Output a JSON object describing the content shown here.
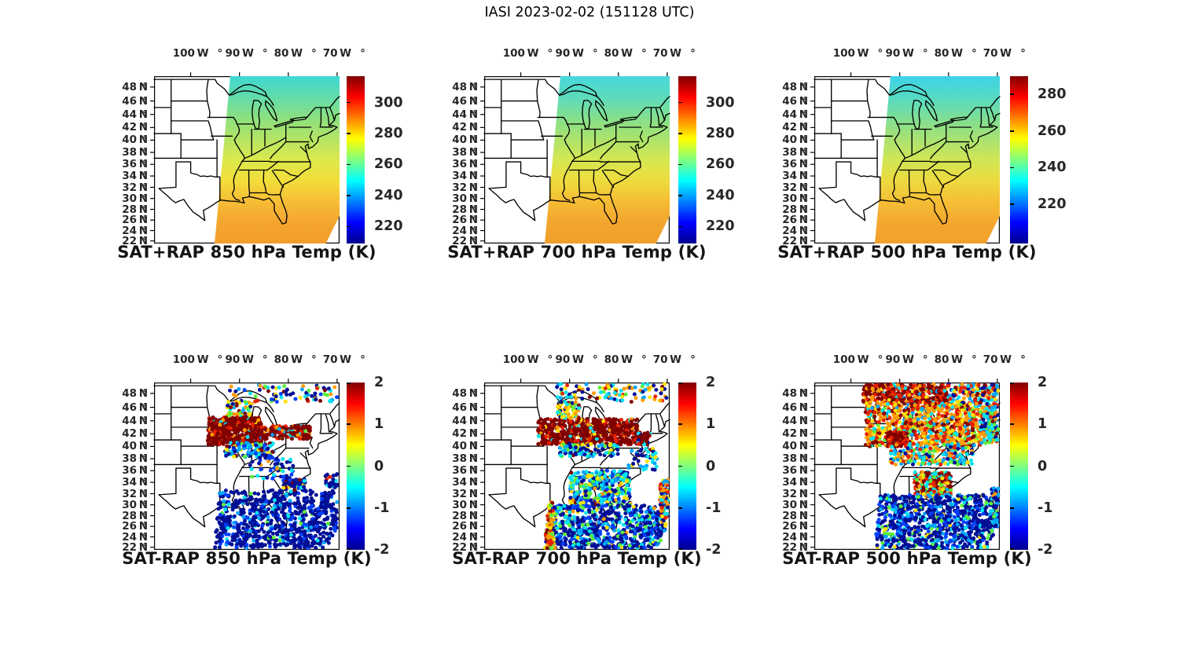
{
  "figure": {
    "title": "IASI 2023-02-02 (151128 UTC)",
    "background": "#ffffff",
    "text_color": "#141414",
    "tick_label_color": "#262626"
  },
  "axes": {
    "projection": "mercator",
    "lon_range_deg_w": [
      107.5,
      69.5
    ],
    "lat_range_deg_n": [
      21.5,
      49.5
    ],
    "x_tick_labels": [
      "100° W",
      "90° W",
      "80° W",
      "70° W"
    ],
    "x_tick_lons_w": [
      100,
      90,
      80,
      70
    ],
    "y_tick_labels": [
      "48° N",
      "46° N",
      "44° N",
      "42° N",
      "40° N",
      "38° N",
      "36° N",
      "34° N",
      "32° N",
      "30° N",
      "28° N",
      "26° N",
      "24° N",
      "22° N"
    ],
    "y_tick_lats_n": [
      48,
      46,
      44,
      42,
      40,
      38,
      36,
      34,
      32,
      30,
      28,
      26,
      24,
      22
    ]
  },
  "colormap": {
    "name": "jet",
    "stops": [
      [
        0,
        "#00008F"
      ],
      [
        0.125,
        "#0000FF"
      ],
      [
        0.375,
        "#00FFFF"
      ],
      [
        0.625,
        "#FFFF00"
      ],
      [
        0.875,
        "#FF0000"
      ],
      [
        1,
        "#800000"
      ]
    ]
  },
  "value_palette": {
    "+2.0": "#800000",
    "+1.5": "#E62100",
    "+1.0": "#FF9C00",
    "+0.5": "#FFE200",
    "0.0": "#5CF03C",
    "-0.5": "#00E4F0",
    "-1.0": "#00A6FF",
    "-1.5": "#0040FF",
    "-2.0": "#000F96"
  },
  "chart_data": [
    {
      "type": "heatmap",
      "title": "SAT+RAP 850 hPa Temp (K)",
      "variable": "retrieved temperature, satellite + RAP background",
      "units": "K",
      "colorbar": {
        "ticks": [
          300,
          280,
          260,
          240,
          220
        ],
        "vmin": 209,
        "vmax": 317
      },
      "swath_note": "colored swath covers roughly 92°W eastward, full N-S; smooth gradient cool north to warm south",
      "gradient_stops": [
        "#3FD7D2",
        "#62DCAB",
        "#8CE07F",
        "#B4E465",
        "#DCE94B",
        "#F2DE3B",
        "#F6BD35",
        "#F4A52F",
        "#F19E2B"
      ],
      "profile_lat_K": [
        [
          49,
          251
        ],
        [
          46,
          255
        ],
        [
          44,
          258
        ],
        [
          42,
          262
        ],
        [
          40,
          265
        ],
        [
          38,
          269
        ],
        [
          36,
          273
        ],
        [
          34,
          277
        ],
        [
          32,
          280
        ],
        [
          30,
          282
        ],
        [
          28,
          284
        ],
        [
          26,
          285
        ],
        [
          24,
          286
        ],
        [
          22,
          287
        ]
      ]
    },
    {
      "type": "heatmap",
      "title": "SAT+RAP 700 hPa Temp (K)",
      "variable": "retrieved temperature, satellite + RAP background",
      "units": "K",
      "colorbar": {
        "ticks": [
          300,
          280,
          260,
          240,
          220
        ],
        "vmin": 209,
        "vmax": 317
      },
      "swath_note": "same swath; slightly cooler than 850 hPa",
      "gradient_stops": [
        "#46D8DC",
        "#5CDBBC",
        "#84DF8C",
        "#ACE36C",
        "#D4E751",
        "#EEDC3E",
        "#F5BC34",
        "#F3A52E",
        "#F09F2B"
      ],
      "profile_lat_K": [
        [
          49,
          247
        ],
        [
          46,
          251
        ],
        [
          44,
          254
        ],
        [
          42,
          257
        ],
        [
          40,
          261
        ],
        [
          38,
          265
        ],
        [
          36,
          269
        ],
        [
          34,
          272
        ],
        [
          32,
          275
        ],
        [
          30,
          277
        ],
        [
          28,
          279
        ],
        [
          26,
          280
        ],
        [
          24,
          281
        ],
        [
          22,
          282
        ]
      ]
    },
    {
      "type": "heatmap",
      "title": "SAT+RAP 500 hPa Temp (K)",
      "variable": "retrieved temperature, satellite + RAP background",
      "units": "K",
      "colorbar": {
        "ticks": [
          280,
          260,
          240,
          220
        ],
        "vmin": 198.5,
        "vmax": 290
      },
      "swath_note": "same swath; coolest level, cyan north to orange south",
      "gradient_stops": [
        "#3DD2E8",
        "#55DAC4",
        "#7FDE95",
        "#A8E272",
        "#D0E655",
        "#EDDA40",
        "#F5BE35",
        "#F3A72F",
        "#F1A02C"
      ],
      "profile_lat_K": [
        [
          49,
          237
        ],
        [
          46,
          240
        ],
        [
          44,
          243
        ],
        [
          42,
          246
        ],
        [
          40,
          249
        ],
        [
          38,
          252
        ],
        [
          36,
          256
        ],
        [
          34,
          259
        ],
        [
          32,
          262
        ],
        [
          30,
          264
        ],
        [
          28,
          266
        ],
        [
          26,
          267
        ],
        [
          24,
          268
        ],
        [
          22,
          269
        ]
      ]
    },
    {
      "type": "scatter",
      "title": "SAT-RAP 850 hPa Temp (K)",
      "variable": "temperature difference satellite minus RAP",
      "units": "K",
      "colorbar": {
        "ticks": [
          2,
          1,
          0,
          -1,
          -2
        ],
        "vmin": -2,
        "vmax": 2
      },
      "summary": "Saturated warm bias (+2 K) blob over upper Midwest extending along ~42N to the East Coast; strong cold bias (-2 K) mass over Gulf Coast / Southeast; mixed small biases along northern swath edge.",
      "clusters": [
        {
          "note": "northern-edge mixed dots",
          "lon_w": [
            92,
            70
          ],
          "lat_n": [
            46.8,
            49.4
          ],
          "count": 80,
          "mix": {
            "+2.0": 0.12,
            "+1.5": 0.1,
            "+1.0": 0.08,
            "+0.5": 0.1,
            "0.0": 0.05,
            "-0.5": 0.12,
            "-1.0": 0.08,
            "-1.5": 0.1,
            "-2.0": 0.35
          }
        },
        {
          "note": "Wisconsin mixed patch",
          "lon_w": [
            92.5,
            87.5
          ],
          "lat_n": [
            43.8,
            46.8
          ],
          "count": 70,
          "mix": {
            "+0.5": 0.25,
            "+1.0": 0.2,
            "-0.5": 0.15,
            "-2.0": 0.1,
            "+2.0": 0.15,
            "0.0": 0.1,
            "-1.0": 0.05
          }
        },
        {
          "note": "warm bias blob upper Midwest",
          "lon_w": [
            96.5,
            85.5
          ],
          "lat_n": [
            40.3,
            44.6
          ],
          "count": 480,
          "mix": {
            "+2.0": 0.8,
            "+1.5": 0.12,
            "+1.0": 0.04,
            "+0.5": 0.02,
            "-0.5": 0.02
          }
        },
        {
          "note": "warm band along 42N to coast",
          "lon_w": [
            85.5,
            75.5
          ],
          "lat_n": [
            41.2,
            43.2
          ],
          "count": 170,
          "mix": {
            "+2.0": 0.6,
            "+1.5": 0.15,
            "+1.0": 0.05,
            "0.0": 0.05,
            "-0.5": 0.08,
            "-1.0": 0.07
          }
        },
        {
          "note": "cool fringe below warm blob",
          "lon_w": [
            93,
            83
          ],
          "lat_n": [
            38.2,
            40.6
          ],
          "count": 110,
          "mix": {
            "-2.0": 0.25,
            "-1.5": 0.15,
            "-1.0": 0.15,
            "-0.5": 0.15,
            "0.0": 0.1,
            "+0.5": 0.1,
            "+2.0": 0.1
          }
        },
        {
          "note": "sparse mid-south",
          "lon_w": [
            88,
            79
          ],
          "lat_n": [
            34.5,
            38.2
          ],
          "count": 55,
          "mix": {
            "-2.0": 0.5,
            "-1.5": 0.2,
            "-0.5": 0.15,
            "0.0": 0.1,
            "+1.0": 0.05
          }
        },
        {
          "note": "cold bias mass Gulf/Southeast",
          "lon_w": [
            95,
            70
          ],
          "lat_n": [
            21.8,
            32.6
          ],
          "count": 850,
          "clip": true,
          "mix": {
            "-2.0": 0.74,
            "-1.5": 0.14,
            "-1.0": 0.06,
            "-0.5": 0.04,
            "0.0": 0.02
          }
        },
        {
          "note": "southeast coastal extension",
          "lon_w": [
            81,
            76.5
          ],
          "lat_n": [
            32.5,
            34.6
          ],
          "count": 70,
          "mix": {
            "-2.0": 0.6,
            "-1.5": 0.15,
            "-0.5": 0.1,
            "+2.0": 0.08,
            "+0.5": 0.07
          }
        },
        {
          "note": "offshore sprinkle",
          "lon_w": [
            72.5,
            70
          ],
          "lat_n": [
            33,
            35.5
          ],
          "count": 25,
          "mix": {
            "-2.0": 0.7,
            "+1.5": 0.1,
            "-0.5": 0.2
          }
        }
      ]
    },
    {
      "type": "scatter",
      "title": "SAT-RAP 700 hPa Temp (K)",
      "variable": "temperature difference satellite minus RAP",
      "units": "K",
      "colorbar": {
        "ticks": [
          2,
          1,
          0,
          -1,
          -2
        ],
        "vmin": -2,
        "vmax": 2
      },
      "summary": "Dark-red warm bias band 40-44N from plains to New York; cold bias south with warm (orange/red) stripes hugging both swath edges; mixed dots across the north.",
      "clusters": [
        {
          "note": "northern-edge mixed dots",
          "lon_w": [
            93,
            70
          ],
          "lat_n": [
            46.8,
            49.4
          ],
          "count": 110,
          "mix": {
            "+1.0": 0.15,
            "+0.5": 0.12,
            "-0.5": 0.15,
            "-1.0": 0.08,
            "-2.0": 0.3,
            "+2.0": 0.08,
            "0.0": 0.07,
            "+1.5": 0.05
          }
        },
        {
          "note": "warm bias band 40-44N",
          "lon_w": [
            96.5,
            76
          ],
          "lat_n": [
            40.3,
            44.3
          ],
          "count": 600,
          "mix": {
            "+2.0": 0.78,
            "+1.5": 0.1,
            "+1.0": 0.05,
            "+0.5": 0.04,
            "-0.5": 0.03
          }
        },
        {
          "note": "band extension to NYC",
          "lon_w": [
            76,
            73.5
          ],
          "lat_n": [
            40.3,
            42.2
          ],
          "count": 60,
          "mix": {
            "+2.0": 0.7,
            "+1.5": 0.1,
            "-0.5": 0.1,
            "-2.0": 0.1
          }
        },
        {
          "note": "Wisconsin mixed patch",
          "lon_w": [
            92.5,
            88
          ],
          "lat_n": [
            44.3,
            46.8
          ],
          "count": 80,
          "mix": {
            "+0.5": 0.25,
            "+1.0": 0.15,
            "-0.5": 0.2,
            "-2.0": 0.15,
            "0.0": 0.1,
            "+2.0": 0.15
          }
        },
        {
          "note": "cool fringe below band",
          "lon_w": [
            92,
            80
          ],
          "lat_n": [
            38.4,
            40.4
          ],
          "count": 110,
          "mix": {
            "-2.0": 0.3,
            "-1.0": 0.2,
            "-0.5": 0.2,
            "0.0": 0.1,
            "+0.5": 0.1,
            "+2.0": 0.1
          }
        },
        {
          "note": "southeast loose mix",
          "lon_w": [
            90,
            77.5
          ],
          "lat_n": [
            30,
            36
          ],
          "count": 330,
          "mix": {
            "-0.5": 0.22,
            "0.0": 0.18,
            "-1.0": 0.15,
            "-1.5": 0.12,
            "-2.0": 0.15,
            "+0.5": 0.1,
            "+1.0": 0.05,
            "+2.0": 0.03
          }
        },
        {
          "note": "cold bias mass deep south",
          "lon_w": [
            95,
            69.8
          ],
          "lat_n": [
            21.8,
            30
          ],
          "count": 750,
          "clip": true,
          "mix": {
            "-2.0": 0.52,
            "-1.5": 0.18,
            "-1.0": 0.1,
            "-0.5": 0.08,
            "0.0": 0.07,
            "+0.5": 0.03,
            "+1.0": 0.02
          }
        },
        {
          "note": "warm stripe west swath edge",
          "lon_w": [
            95.3,
            93.2
          ],
          "lat_n": [
            21.8,
            30.5
          ],
          "count": 130,
          "clip": true,
          "mix": {
            "+1.0": 0.3,
            "+1.5": 0.25,
            "+0.5": 0.2,
            "+2.0": 0.15,
            "0.0": 0.1
          }
        },
        {
          "note": "warm stripe east swath edge",
          "lon_w": [
            71.5,
            69.5
          ],
          "lat_n": [
            27.5,
            34.5
          ],
          "count": 110,
          "mix": {
            "+1.0": 0.25,
            "+1.5": 0.2,
            "-0.5": 0.15,
            "-1.0": 0.1,
            "+0.5": 0.15,
            "-2.0": 0.15
          }
        },
        {
          "note": "mid-Atlantic sprinkle",
          "lon_w": [
            78,
            72
          ],
          "lat_n": [
            36,
            40
          ],
          "count": 45,
          "mix": {
            "-2.0": 0.4,
            "-1.0": 0.2,
            "-0.5": 0.2,
            "+2.0": 0.1,
            "+0.5": 0.1
          }
        }
      ]
    },
    {
      "type": "scatter",
      "title": "SAT-RAP 500 hPa Temp (K)",
      "variable": "temperature difference satellite minus RAP",
      "units": "K",
      "colorbar": {
        "ticks": [
          2,
          1,
          0,
          -1,
          -2
        ],
        "vmin": -2,
        "vmax": 2
      },
      "summary": "Dense warm bias (orange/red, dark-red streaks) covering the northern half of the swath; cold bias (dark blue with cyan/green flecks) over the south; warm patch over Georgia/Alabama; mixed cool dots along the northeastern and southeastern edges.",
      "clusters": [
        {
          "note": "dark-red top band",
          "lon_w": [
            97.5,
            80
          ],
          "lat_n": [
            46.5,
            49.4
          ],
          "count": 420,
          "mix": {
            "+2.0": 0.5,
            "+1.5": 0.25,
            "+1.0": 0.12,
            "+0.5": 0.05,
            "-0.5": 0.04,
            "-1.0": 0.04
          }
        },
        {
          "note": "top band east mixed",
          "lon_w": [
            80,
            68.5
          ],
          "lat_n": [
            45.5,
            49.4
          ],
          "count": 220,
          "mix": {
            "+1.5": 0.2,
            "+1.0": 0.15,
            "-0.5": 0.15,
            "-1.0": 0.15,
            "-2.0": 0.15,
            "+2.0": 0.1,
            "+0.5": 0.1
          }
        },
        {
          "note": "dense warm north half",
          "lon_w": [
            97,
            73.5
          ],
          "lat_n": [
            40,
            46.5
          ],
          "count": 850,
          "mix": {
            "+1.0": 0.3,
            "+1.5": 0.22,
            "+2.0": 0.16,
            "+0.5": 0.14,
            "-0.5": 0.08,
            "0.0": 0.06,
            "-1.0": 0.04
          }
        },
        {
          "note": "dark-red patch Iowa/Illinois",
          "lon_w": [
            92.5,
            88.5
          ],
          "lat_n": [
            40,
            42.3
          ],
          "count": 120,
          "mix": {
            "+2.0": 0.7,
            "+1.5": 0.2,
            "+1.0": 0.1
          }
        },
        {
          "note": "northeast mixed cool",
          "lon_w": [
            73.5,
            68.3
          ],
          "lat_n": [
            40.5,
            46
          ],
          "count": 200,
          "mix": {
            "-0.5": 0.2,
            "-1.0": 0.2,
            "-2.0": 0.15,
            "+1.0": 0.15,
            "+1.5": 0.1,
            "0.0": 0.1,
            "+2.0": 0.1
          }
        },
        {
          "note": "mid transition 37-40N",
          "lon_w": [
            92,
            75
          ],
          "lat_n": [
            37,
            40
          ],
          "count": 190,
          "mix": {
            "+1.0": 0.18,
            "+1.5": 0.15,
            "-0.5": 0.18,
            "-1.0": 0.15,
            "-2.0": 0.12,
            "0.0": 0.12,
            "+0.5": 0.1
          }
        },
        {
          "note": "warm patch Georgia/Alabama",
          "lon_w": [
            87,
            79.5
          ],
          "lat_n": [
            31.5,
            35.8
          ],
          "count": 260,
          "mix": {
            "+2.0": 0.3,
            "+1.5": 0.22,
            "+1.0": 0.13,
            "0.0": 0.12,
            "-0.5": 0.1,
            "+0.5": 0.08,
            "-1.0": 0.05
          }
        },
        {
          "note": "cold bias mass south",
          "lon_w": [
            95,
            68.3
          ],
          "lat_n": [
            21.8,
            31.8
          ],
          "count": 1000,
          "clip": true,
          "mix": {
            "-2.0": 0.58,
            "-1.5": 0.15,
            "-1.0": 0.1,
            "-0.5": 0.08,
            "0.0": 0.07,
            "+0.5": 0.02
          }
        },
        {
          "note": "southeast edge mixed",
          "lon_w": [
            71.5,
            68.3
          ],
          "lat_n": [
            26,
            33
          ],
          "count": 130,
          "mix": {
            "-1.0": 0.25,
            "-2.0": 0.25,
            "-0.5": 0.2,
            "+1.5": 0.1,
            "+1.0": 0.1,
            "0.0": 0.1
          }
        }
      ]
    }
  ]
}
